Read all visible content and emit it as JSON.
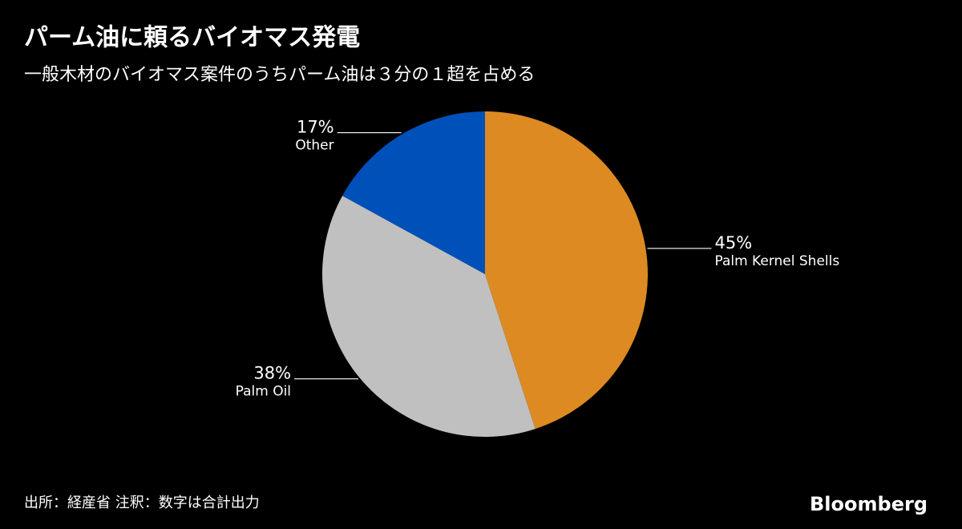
{
  "chart_data": {
    "type": "pie",
    "title": "パーム油に頼るバイオマス発電",
    "subtitle": "一般木材のバイオマス案件のうちパーム油は３分の１超を占める",
    "categories": [
      "Palm Kernel Shells",
      "Palm Oil",
      "Other"
    ],
    "values": [
      45,
      38,
      17
    ],
    "value_labels": [
      "45%",
      "38%",
      "17%"
    ],
    "colors": [
      "#de8a22",
      "#c0c0c0",
      "#0050b9"
    ],
    "source": "出所：経産省 注釈：数字は合計出力",
    "brand": "Bloomberg"
  }
}
